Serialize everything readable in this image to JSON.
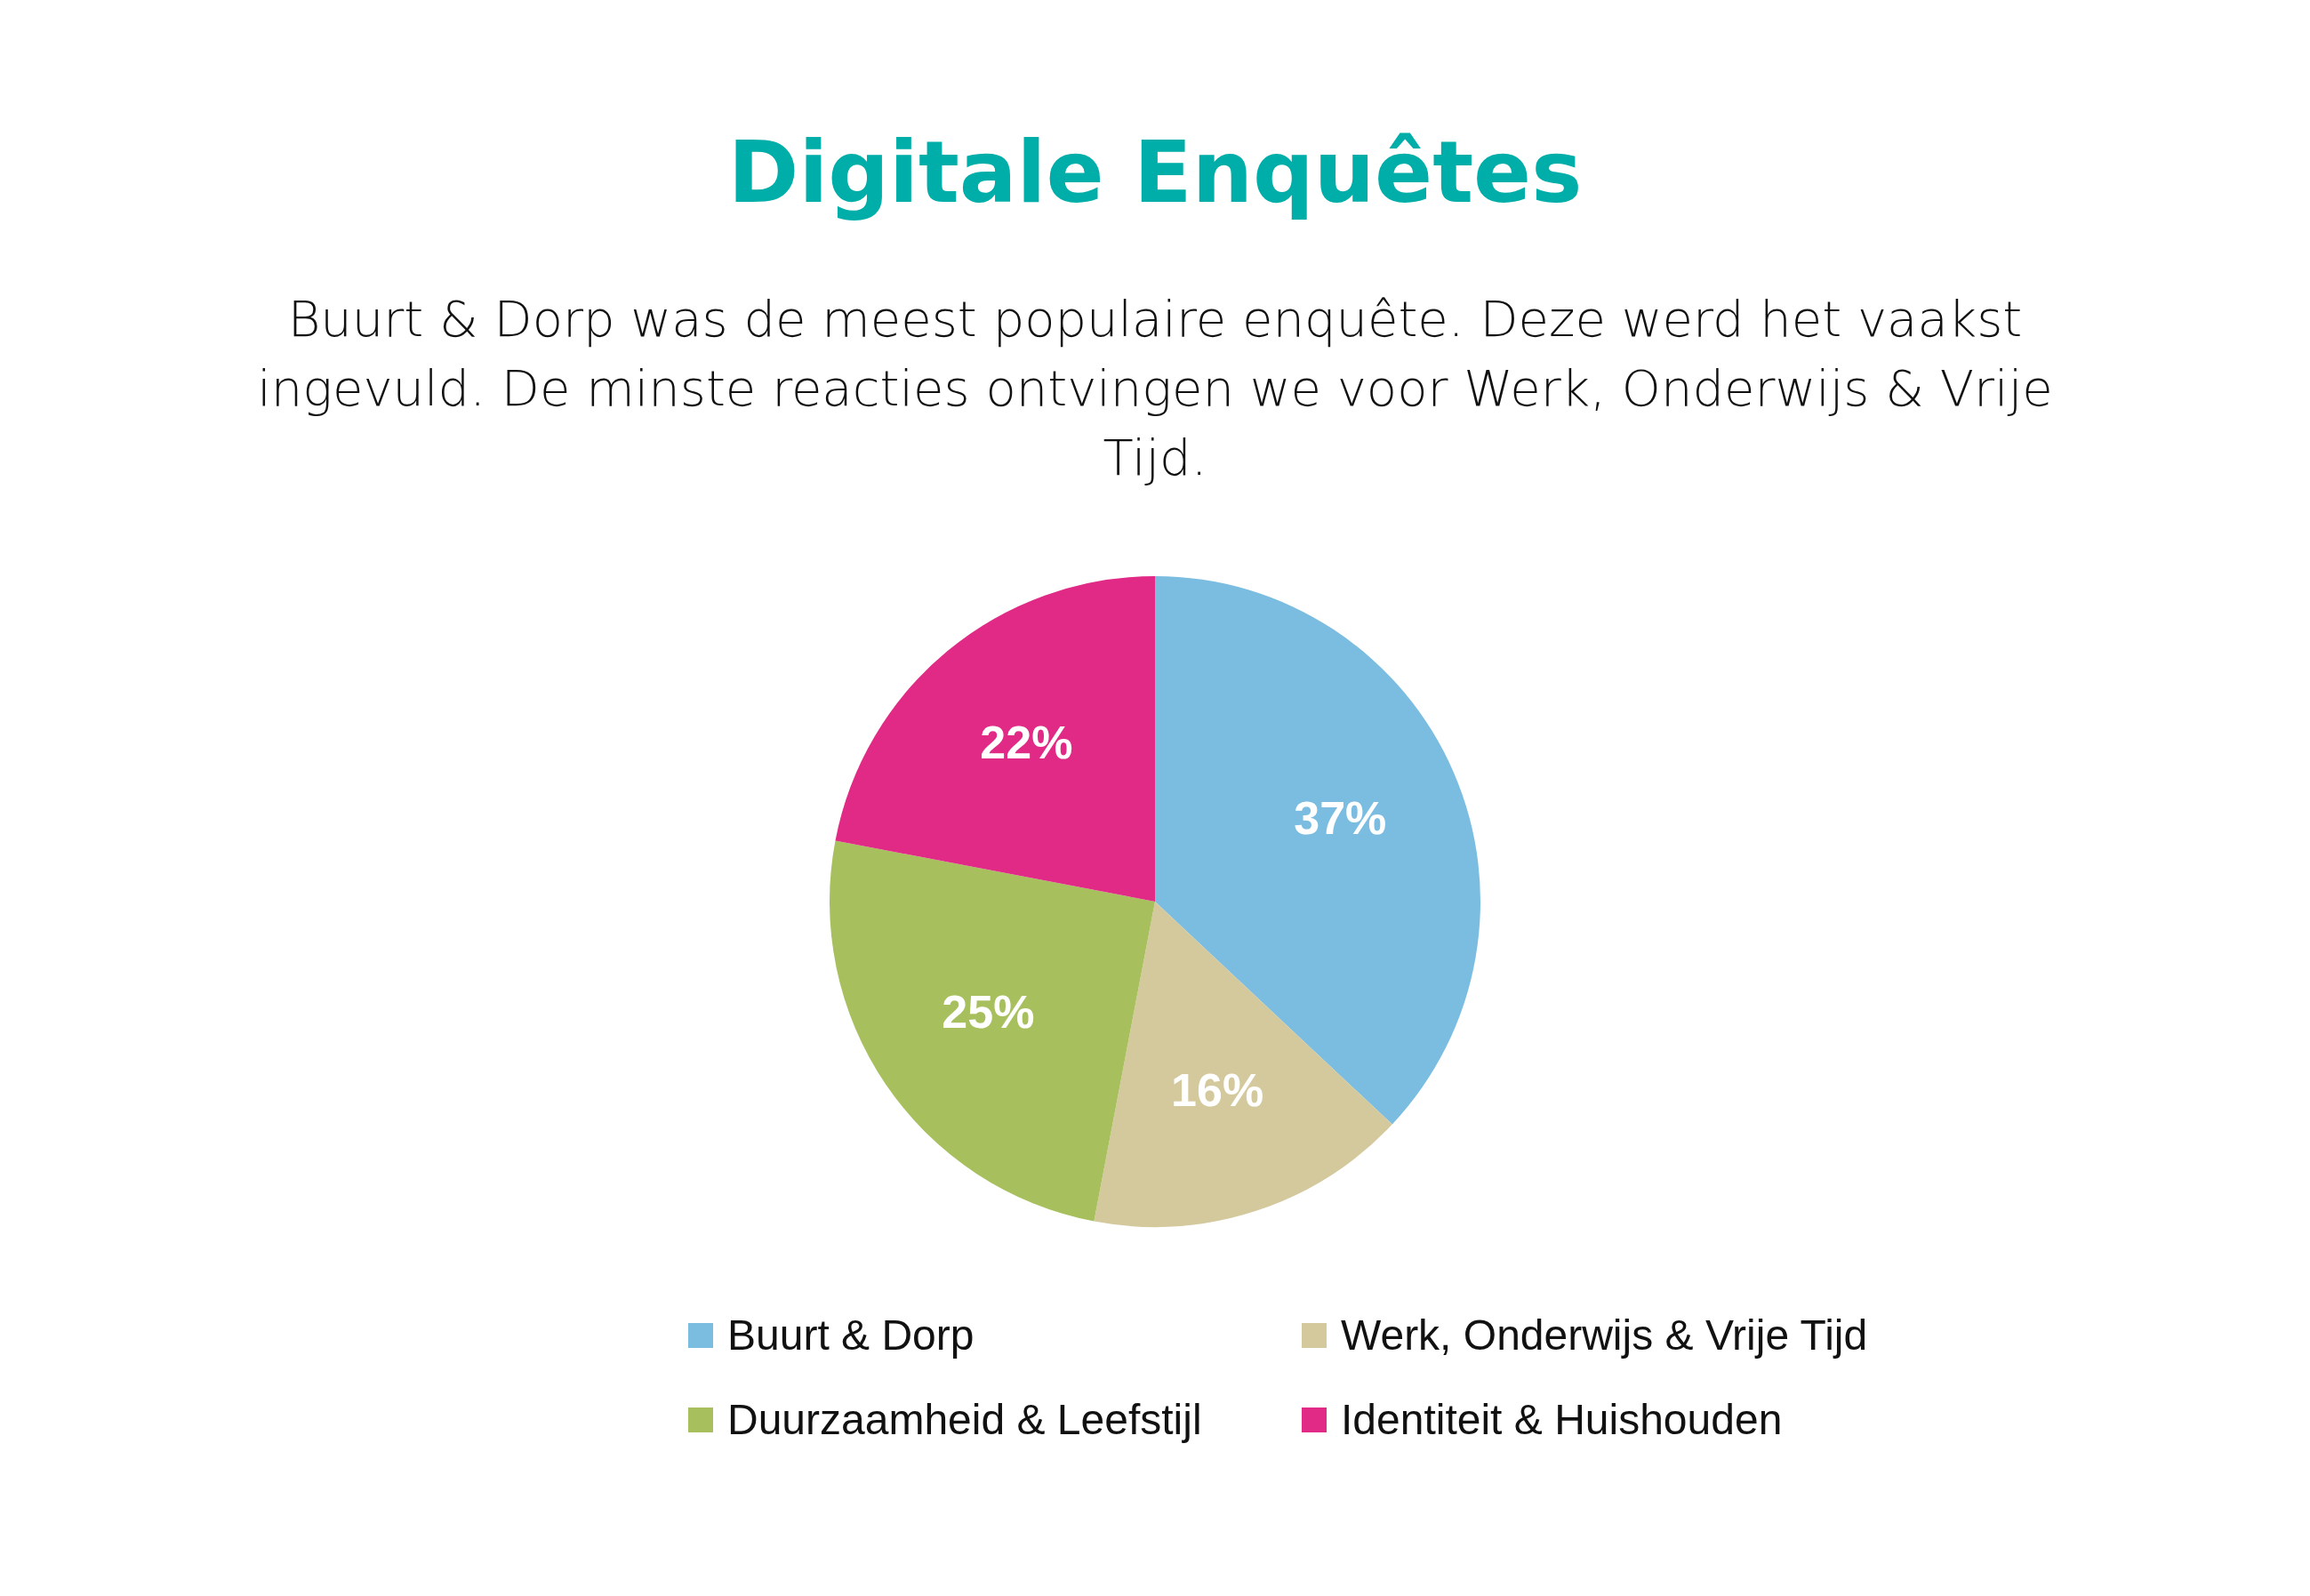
{
  "chart_data": {
    "type": "pie",
    "title": "Digitale Enquêtes",
    "subtitle": "Buurt & Dorp was de meest populaire enquête. Deze werd het vaakst ingevuld. De minste reacties ontvingen we voor Werk, Onderwijs & Vrije Tijd.",
    "categories": [
      "Buurt & Dorp",
      "Werk, Onderwijs & Vrije Tijd",
      "Duurzaamheid & Leefstijl",
      "Identiteit & Huishouden"
    ],
    "values": [
      37,
      16,
      25,
      22
    ],
    "value_labels": [
      "37%",
      "16%",
      "25%",
      "22%"
    ],
    "colors": [
      "#7bbde1",
      "#d4c99c",
      "#a8bf5e",
      "#e02a86"
    ],
    "legend": "bottom"
  }
}
